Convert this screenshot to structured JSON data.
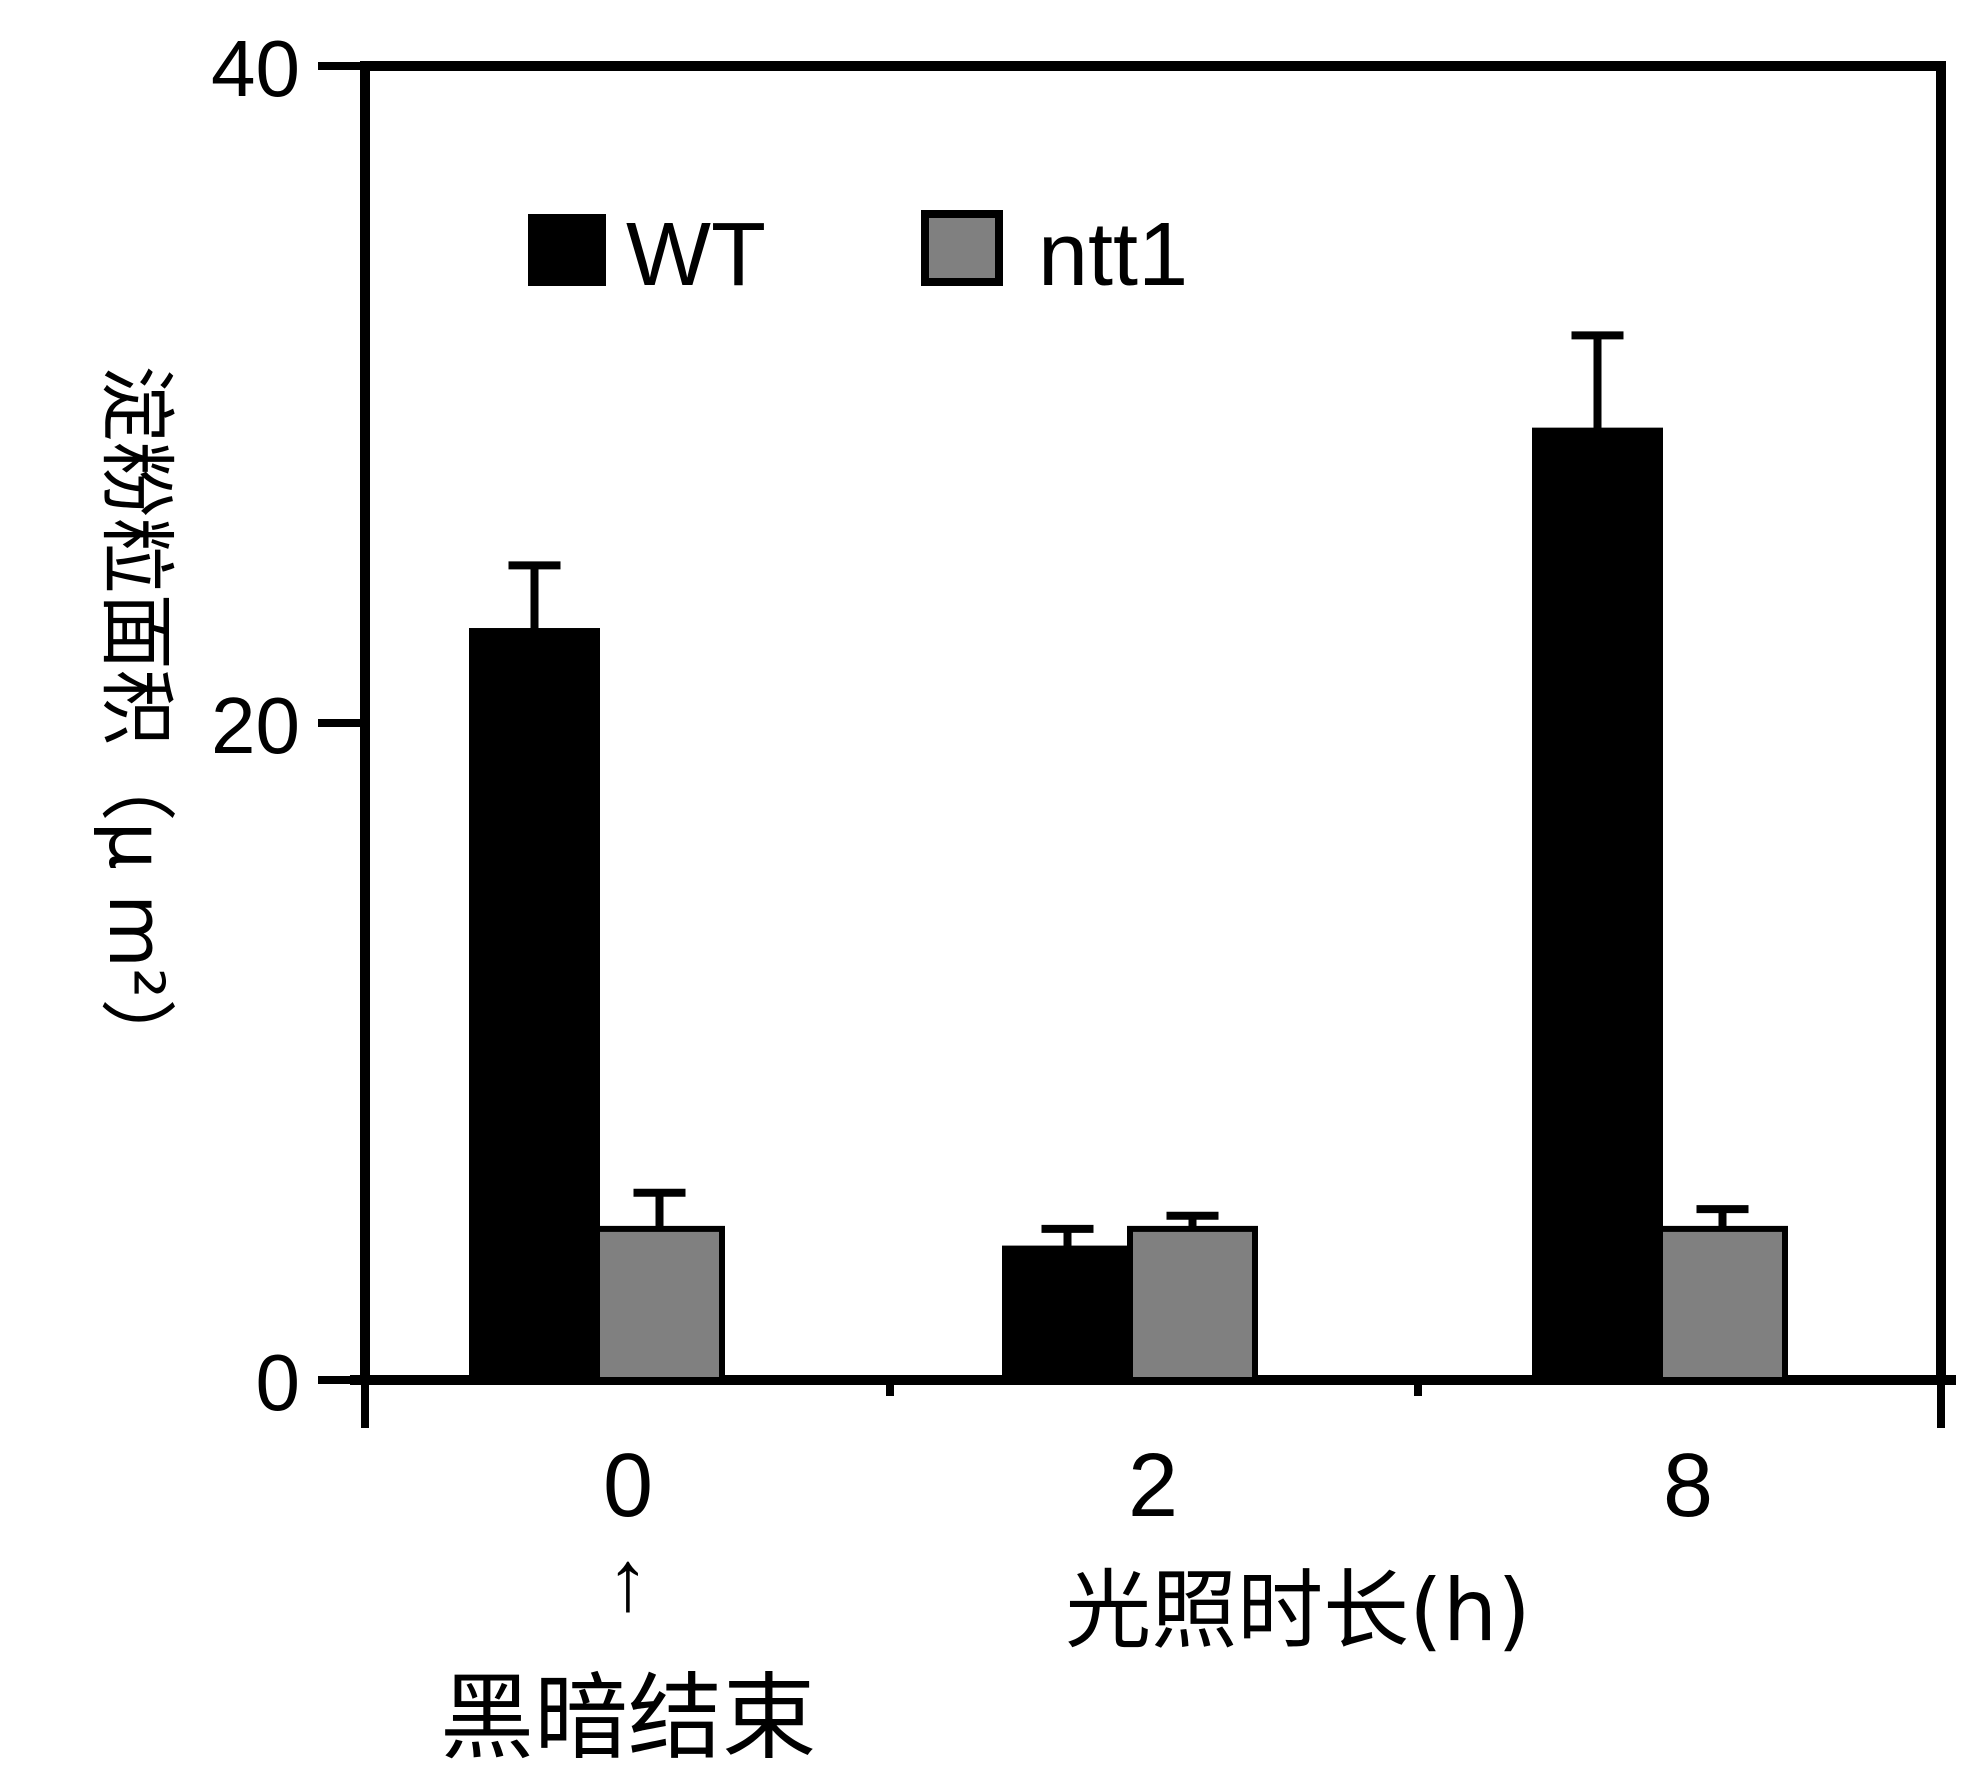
{
  "chart_data": {
    "type": "bar",
    "categories": [
      "0",
      "2",
      "8"
    ],
    "series": [
      {
        "name": "WT",
        "values": [
          22.8,
          4.0,
          28.9
        ],
        "errors": [
          2.0,
          0.6,
          2.9
        ],
        "color": "#000000"
      },
      {
        "name": "ntt1",
        "values": [
          4.6,
          4.6,
          4.6
        ],
        "errors": [
          1.1,
          0.4,
          0.6
        ],
        "color": "#808080"
      }
    ],
    "xlabel": "光照时长(h)",
    "ylabel": "淀粉粒面积（μ m²）",
    "ylim": [
      0,
      40
    ],
    "yticks": [
      0,
      20,
      40
    ],
    "legend_position": "top-left",
    "annotation": {
      "text": "黑暗结束",
      "arrow": "↑",
      "target_category": "0"
    },
    "grid": false
  }
}
